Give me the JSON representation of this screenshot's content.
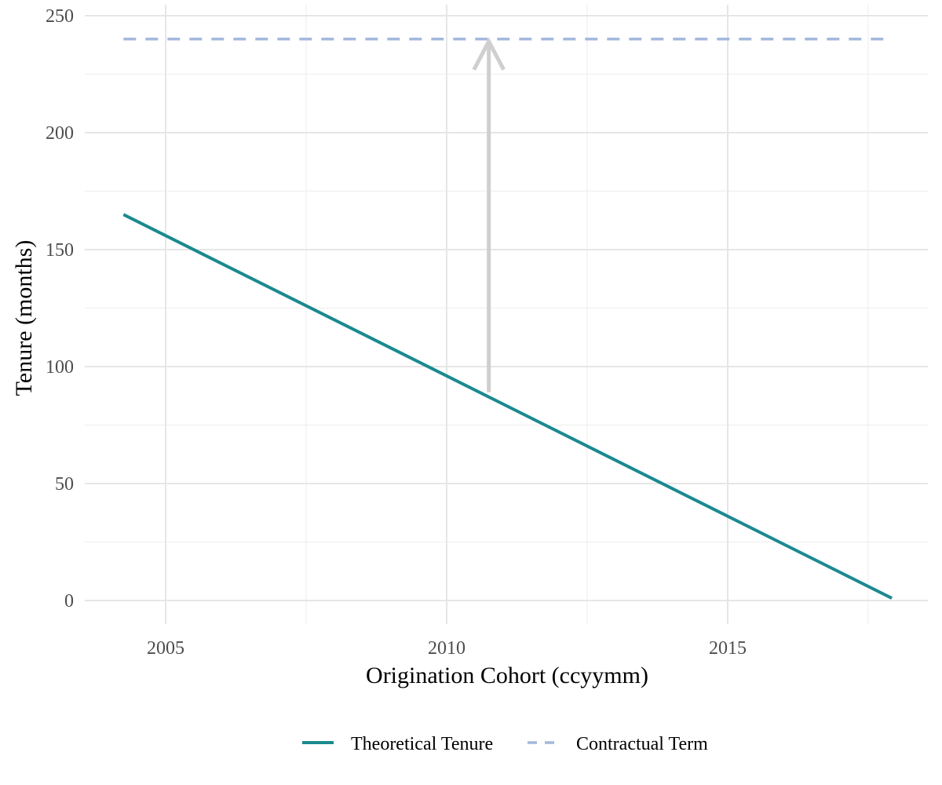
{
  "chart_data": {
    "type": "line",
    "xlabel": "Origination Cohort (ccyymm)",
    "ylabel": "Tenure (months)",
    "xlim": [
      2003.5,
      2019.0
    ],
    "ylim": [
      -10,
      250
    ],
    "x_ticks": [
      2005,
      2010,
      2015
    ],
    "x_tick_labels": [
      "2005",
      "2010",
      "2015"
    ],
    "y_ticks": [
      0,
      50,
      100,
      150,
      200,
      250
    ],
    "y_tick_labels": [
      "0",
      "50",
      "100",
      "150",
      "200",
      "250"
    ],
    "grid": true,
    "legend_position": "bottom",
    "series": [
      {
        "name": "Theoretical Tenure",
        "style": "solid",
        "color": "#1a8a8f",
        "x": [
          2004.25,
          2017.92
        ],
        "y": [
          165,
          1
        ]
      },
      {
        "name": "Contractual Term",
        "style": "dashed",
        "color": "#a3b8dc",
        "x": [
          2004.25,
          2017.92
        ],
        "y": [
          240,
          240
        ]
      }
    ],
    "annotations": [
      {
        "type": "arrow",
        "color": "#cfcfcf",
        "x": 2010.75,
        "y_from": 89,
        "y_to": 239
      }
    ]
  }
}
